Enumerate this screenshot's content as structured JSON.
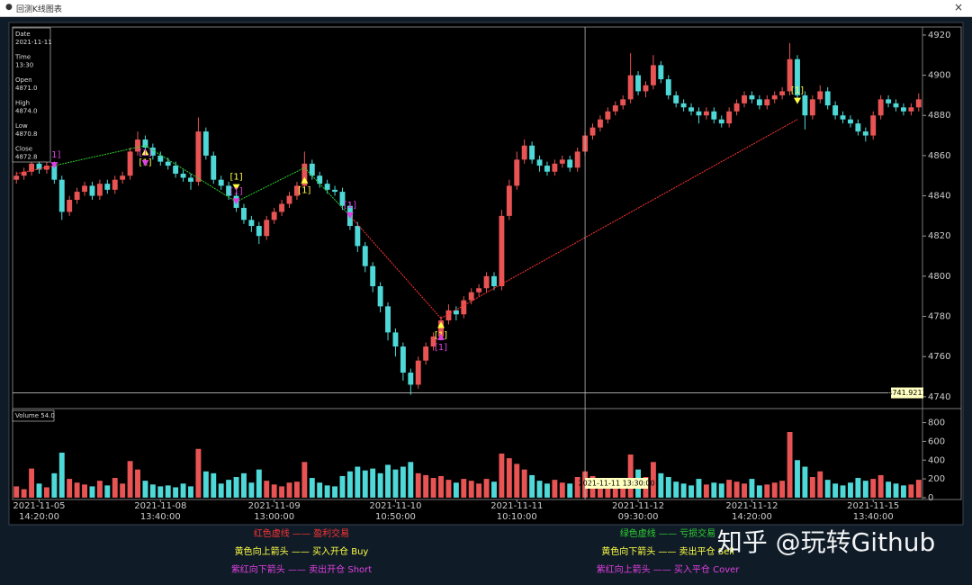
{
  "window_title": "回测K线图表",
  "close_button": "×",
  "watermark": "知乎 @玩转Github",
  "info_box": {
    "date_label": "Date",
    "date": "2021-11-11",
    "time_label": "Time",
    "time": "13:30",
    "open_label": "Open",
    "open": "4871.0",
    "high_label": "High",
    "high": "4874.0",
    "low_label": "Low",
    "low": "4870.8",
    "close_label": "Close",
    "close": "4872.8"
  },
  "volume_box": "Volume 54.0",
  "legend": [
    {
      "text": "红色虚线 —— 盈利交易",
      "color": "#ff3434"
    },
    {
      "text": "黄色向上箭头 —— 买入开仓 Buy",
      "color": "#ffff44"
    },
    {
      "text": "紫红向下箭头 —— 卖出开仓 Short",
      "color": "#e040e0"
    },
    {
      "text": "绿色虚线 —— 亏损交易",
      "color": "#30d030"
    },
    {
      "text": "黄色向下箭头 —— 卖出平仓 Sell",
      "color": "#ffff44"
    },
    {
      "text": "紫红向上箭头 —— 买入平仓 Cover",
      "color": "#e040e0"
    }
  ],
  "chart_data": {
    "type": "candlestick",
    "up_color": "#e85454",
    "down_color": "#4fd8d8",
    "ylim": [
      4735,
      4924
    ],
    "yticks": [
      4740,
      4760,
      4780,
      4800,
      4820,
      4840,
      4860,
      4880,
      4900,
      4920
    ],
    "volume_ylim": [
      -20,
      940
    ],
    "volume_yticks": [
      0,
      200,
      400,
      600,
      800
    ],
    "x_labels": [
      {
        "index": 3,
        "date": "2021-11-05",
        "time": "14:20:00"
      },
      {
        "index": 19,
        "date": "2021-11-08",
        "time": "13:40:00"
      },
      {
        "index": 34,
        "date": "2021-11-09",
        "time": "13:00:00"
      },
      {
        "index": 50,
        "date": "2021-11-10",
        "time": "10:50:00"
      },
      {
        "index": 66,
        "date": "2021-11-11",
        "time": "10:10:00"
      },
      {
        "index": 82,
        "date": "2021-11-12",
        "time": "09:30:00"
      },
      {
        "index": 97,
        "date": "2021-11-12",
        "time": "14:20:00"
      },
      {
        "index": 113,
        "date": "2021-11-15",
        "time": "13:40:00"
      }
    ],
    "open": [
      4848,
      4850,
      4852,
      4856,
      4853,
      4855,
      4848,
      4832,
      4838,
      4842,
      4845,
      4840,
      4846,
      4843,
      4848,
      4850,
      4862,
      4868,
      4864,
      4860,
      4857,
      4855,
      4851,
      4849,
      4847,
      4872,
      4860,
      4848,
      4845,
      4840,
      4834,
      4828,
      4825,
      4820,
      4828,
      4832,
      4836,
      4840,
      4845,
      4856,
      4850,
      4846,
      4843,
      4842,
      4835,
      4825,
      4815,
      4805,
      4795,
      4785,
      4772,
      4765,
      4752,
      4746,
      4758,
      4765,
      4770,
      4778,
      4783,
      4781,
      4788,
      4792,
      4794,
      4800,
      4795,
      4830,
      4845,
      4858,
      4865,
      4858,
      4855,
      4852,
      4856,
      4858,
      4854,
      4862,
      4870,
      4874,
      4878,
      4882,
      4885,
      4888,
      4900,
      4892,
      4895,
      4905,
      4898,
      4890,
      4886,
      4884,
      4882,
      4880,
      4882,
      4878,
      4876,
      4882,
      4886,
      4890,
      4888,
      4885,
      4888,
      4890,
      4892,
      4908,
      4890,
      4880,
      4888,
      4892,
      4885,
      4880,
      4878,
      4876,
      4872,
      4870,
      4880,
      4888,
      4886,
      4884,
      4882,
      4884
    ],
    "high": [
      4852,
      4854,
      4858,
      4858,
      4857,
      4857,
      4850,
      4840,
      4844,
      4847,
      4847,
      4848,
      4848,
      4850,
      4852,
      4864,
      4872,
      4870,
      4866,
      4862,
      4859,
      4857,
      4853,
      4851,
      4879,
      4874,
      4862,
      4850,
      4847,
      4842,
      4836,
      4830,
      4827,
      4830,
      4834,
      4838,
      4842,
      4847,
      4862,
      4858,
      4852,
      4848,
      4845,
      4844,
      4837,
      4827,
      4817,
      4807,
      4797,
      4787,
      4774,
      4767,
      4754,
      4760,
      4767,
      4772,
      4780,
      4786,
      4785,
      4790,
      4794,
      4796,
      4802,
      4802,
      4833,
      4848,
      4862,
      4868,
      4867,
      4860,
      4857,
      4858,
      4860,
      4860,
      4864,
      4872,
      4876,
      4880,
      4884,
      4887,
      4890,
      4911,
      4902,
      4897,
      4910,
      4907,
      4900,
      4892,
      4888,
      4886,
      4884,
      4884,
      4884,
      4880,
      4884,
      4888,
      4892,
      4892,
      4890,
      4890,
      4892,
      4894,
      4916,
      4910,
      4892,
      4890,
      4895,
      4894,
      4887,
      4882,
      4880,
      4878,
      4874,
      4882,
      4890,
      4890,
      4888,
      4886,
      4886,
      4891
    ],
    "low": [
      4846,
      4848,
      4850,
      4851,
      4851,
      4846,
      4828,
      4830,
      4836,
      4840,
      4838,
      4838,
      4841,
      4841,
      4846,
      4848,
      4860,
      4862,
      4858,
      4855,
      4853,
      4849,
      4847,
      4843,
      4845,
      4858,
      4846,
      4843,
      4838,
      4832,
      4826,
      4822,
      4816,
      4818,
      4826,
      4830,
      4834,
      4838,
      4843,
      4848,
      4844,
      4841,
      4840,
      4833,
      4823,
      4812,
      4802,
      4792,
      4782,
      4768,
      4760,
      4748,
      4741,
      4744,
      4756,
      4763,
      4768,
      4776,
      4778,
      4779,
      4786,
      4790,
      4792,
      4793,
      4793,
      4828,
      4843,
      4856,
      4856,
      4852,
      4850,
      4850,
      4854,
      4852,
      4852,
      4860,
      4868,
      4872,
      4876,
      4880,
      4883,
      4886,
      4890,
      4889,
      4893,
      4896,
      4888,
      4884,
      4882,
      4880,
      4876,
      4878,
      4876,
      4874,
      4874,
      4880,
      4884,
      4886,
      4883,
      4883,
      4886,
      4888,
      4890,
      4888,
      4873,
      4878,
      4886,
      4883,
      4878,
      4876,
      4874,
      4870,
      4867,
      4868,
      4878,
      4884,
      4882,
      4880,
      4880,
      4882
    ],
    "close": [
      4850,
      4852,
      4856,
      4853,
      4855,
      4848,
      4832,
      4838,
      4842,
      4845,
      4840,
      4846,
      4843,
      4848,
      4850,
      4862,
      4868,
      4864,
      4860,
      4857,
      4855,
      4851,
      4849,
      4847,
      4872,
      4860,
      4848,
      4845,
      4840,
      4834,
      4828,
      4825,
      4820,
      4828,
      4832,
      4836,
      4840,
      4845,
      4856,
      4850,
      4846,
      4843,
      4842,
      4835,
      4825,
      4815,
      4805,
      4795,
      4785,
      4772,
      4765,
      4752,
      4746,
      4758,
      4765,
      4770,
      4778,
      4783,
      4781,
      4788,
      4792,
      4794,
      4800,
      4795,
      4830,
      4845,
      4858,
      4865,
      4858,
      4855,
      4852,
      4856,
      4858,
      4854,
      4862,
      4870,
      4874,
      4878,
      4882,
      4885,
      4888,
      4900,
      4892,
      4895,
      4905,
      4898,
      4890,
      4886,
      4884,
      4882,
      4880,
      4882,
      4878,
      4876,
      4882,
      4886,
      4890,
      4888,
      4885,
      4888,
      4890,
      4892,
      4908,
      4890,
      4880,
      4888,
      4892,
      4885,
      4880,
      4878,
      4876,
      4872,
      4870,
      4880,
      4888,
      4886,
      4884,
      4882,
      4884,
      4888
    ],
    "volume": [
      120,
      90,
      310,
      150,
      110,
      260,
      480,
      200,
      160,
      140,
      120,
      180,
      130,
      210,
      150,
      390,
      300,
      180,
      140,
      120,
      130,
      110,
      150,
      120,
      520,
      280,
      260,
      150,
      190,
      220,
      260,
      160,
      300,
      180,
      140,
      120,
      160,
      170,
      380,
      210,
      160,
      130,
      120,
      230,
      280,
      330,
      290,
      310,
      260,
      350,
      300,
      330,
      380,
      260,
      240,
      210,
      230,
      190,
      160,
      200,
      180,
      150,
      200,
      170,
      470,
      420,
      360,
      300,
      240,
      180,
      150,
      190,
      160,
      150,
      220,
      280,
      230,
      200,
      190,
      170,
      210,
      460,
      300,
      220,
      380,
      260,
      220,
      170,
      150,
      130,
      200,
      140,
      160,
      150,
      190,
      170,
      150,
      200,
      130,
      140,
      160,
      180,
      700,
      400,
      330,
      220,
      280,
      190,
      150,
      130,
      160,
      210,
      180,
      200,
      240,
      170,
      150,
      130,
      140,
      190
    ],
    "trades": [
      {
        "x": [
          0,
          5
        ],
        "price": [
          4851,
          4855
        ],
        "color": "#ff3434"
      },
      {
        "x": [
          5,
          17
        ],
        "price": [
          4855,
          4865
        ],
        "color": "#30d030"
      },
      {
        "x": [
          17,
          29
        ],
        "price": [
          4865,
          4837
        ],
        "color": "#30d030"
      },
      {
        "x": [
          29,
          38
        ],
        "price": [
          4837,
          4854
        ],
        "color": "#30d030"
      },
      {
        "x": [
          38,
          44
        ],
        "price": [
          4854,
          4830
        ],
        "color": "#30d030"
      },
      {
        "x": [
          44,
          56
        ],
        "price": [
          4830,
          4779
        ],
        "color": "#ff3434"
      },
      {
        "x": [
          56,
          63
        ],
        "price": [
          4779,
          4794
        ],
        "color": "#ff3434"
      },
      {
        "x": [
          63,
          103
        ],
        "price": [
          4794,
          4878
        ],
        "color": "#ff3434"
      }
    ],
    "signals": [
      {
        "x": 5,
        "price": 4855,
        "direction": "down",
        "color": "#e040e0",
        "label": "[1]"
      },
      {
        "x": 17,
        "price": 4862,
        "direction": "up",
        "color": "#ffff44",
        "label": "[1]"
      },
      {
        "x": 17,
        "price": 4856,
        "direction": "down",
        "color": "#e040e0",
        "label": "[1]"
      },
      {
        "x": 29,
        "price": 4844,
        "direction": "down",
        "color": "#ffff44",
        "label": "[1]"
      },
      {
        "x": 29,
        "price": 4837,
        "direction": "down",
        "color": "#e040e0",
        "label": "[1]"
      },
      {
        "x": 38,
        "price": 4848,
        "direction": "up",
        "color": "#ffff44",
        "label": "[1]"
      },
      {
        "x": 44,
        "price": 4830,
        "direction": "down",
        "color": "#e040e0",
        "label": "[1]"
      },
      {
        "x": 56,
        "price": 4776,
        "direction": "up",
        "color": "#ffff44",
        "label": "[1]"
      },
      {
        "x": 56,
        "price": 4770,
        "direction": "up",
        "color": "#e040e0",
        "label": "[1]"
      },
      {
        "x": 103,
        "price": 4887,
        "direction": "down",
        "color": "#ffff44",
        "label": "[1]"
      }
    ],
    "crosshair": {
      "x": 75,
      "price": 4741.9211,
      "time_label": "2021-11-11 13:30:00"
    }
  }
}
